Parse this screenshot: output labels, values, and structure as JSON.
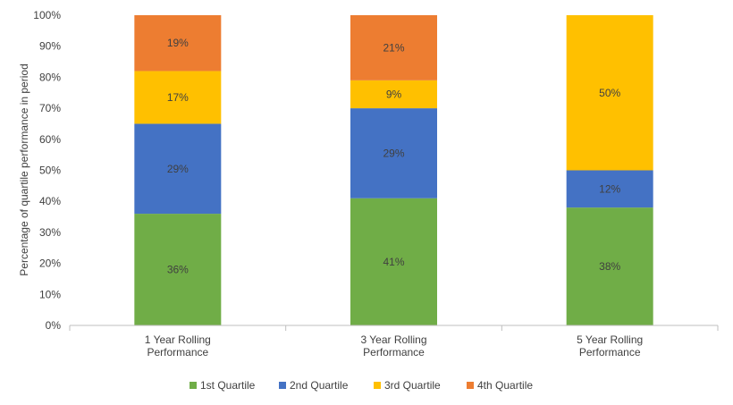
{
  "chart_data": {
    "type": "bar",
    "stacked": true,
    "ylabel": "Percentage of quartile performance in period",
    "ylim": [
      0,
      100
    ],
    "yticks": [
      "0%",
      "10%",
      "20%",
      "30%",
      "40%",
      "50%",
      "60%",
      "70%",
      "80%",
      "90%",
      "100%"
    ],
    "categories": [
      [
        "1 Year Rolling",
        "Performance"
      ],
      [
        "3 Year Rolling",
        "Performance"
      ],
      [
        "5 Year Rolling",
        "Performance"
      ]
    ],
    "series": [
      {
        "name": "1st Quartile",
        "color": "#70AD47",
        "values": [
          36,
          41,
          38
        ],
        "labels": [
          "36%",
          "41%",
          "38%"
        ]
      },
      {
        "name": "2nd Quartile",
        "color": "#4472C4",
        "values": [
          29,
          29,
          12
        ],
        "labels": [
          "29%",
          "29%",
          "12%"
        ]
      },
      {
        "name": "3rd Quartile",
        "color": "#FFC000",
        "values": [
          17,
          9,
          50
        ],
        "labels": [
          "17%",
          "9%",
          "50%"
        ]
      },
      {
        "name": "4th Quartile",
        "color": "#ED7D31",
        "values": [
          19,
          21,
          0
        ],
        "labels": [
          "19%",
          "21%",
          ""
        ]
      }
    ],
    "legend": "bottom",
    "grid": false
  }
}
